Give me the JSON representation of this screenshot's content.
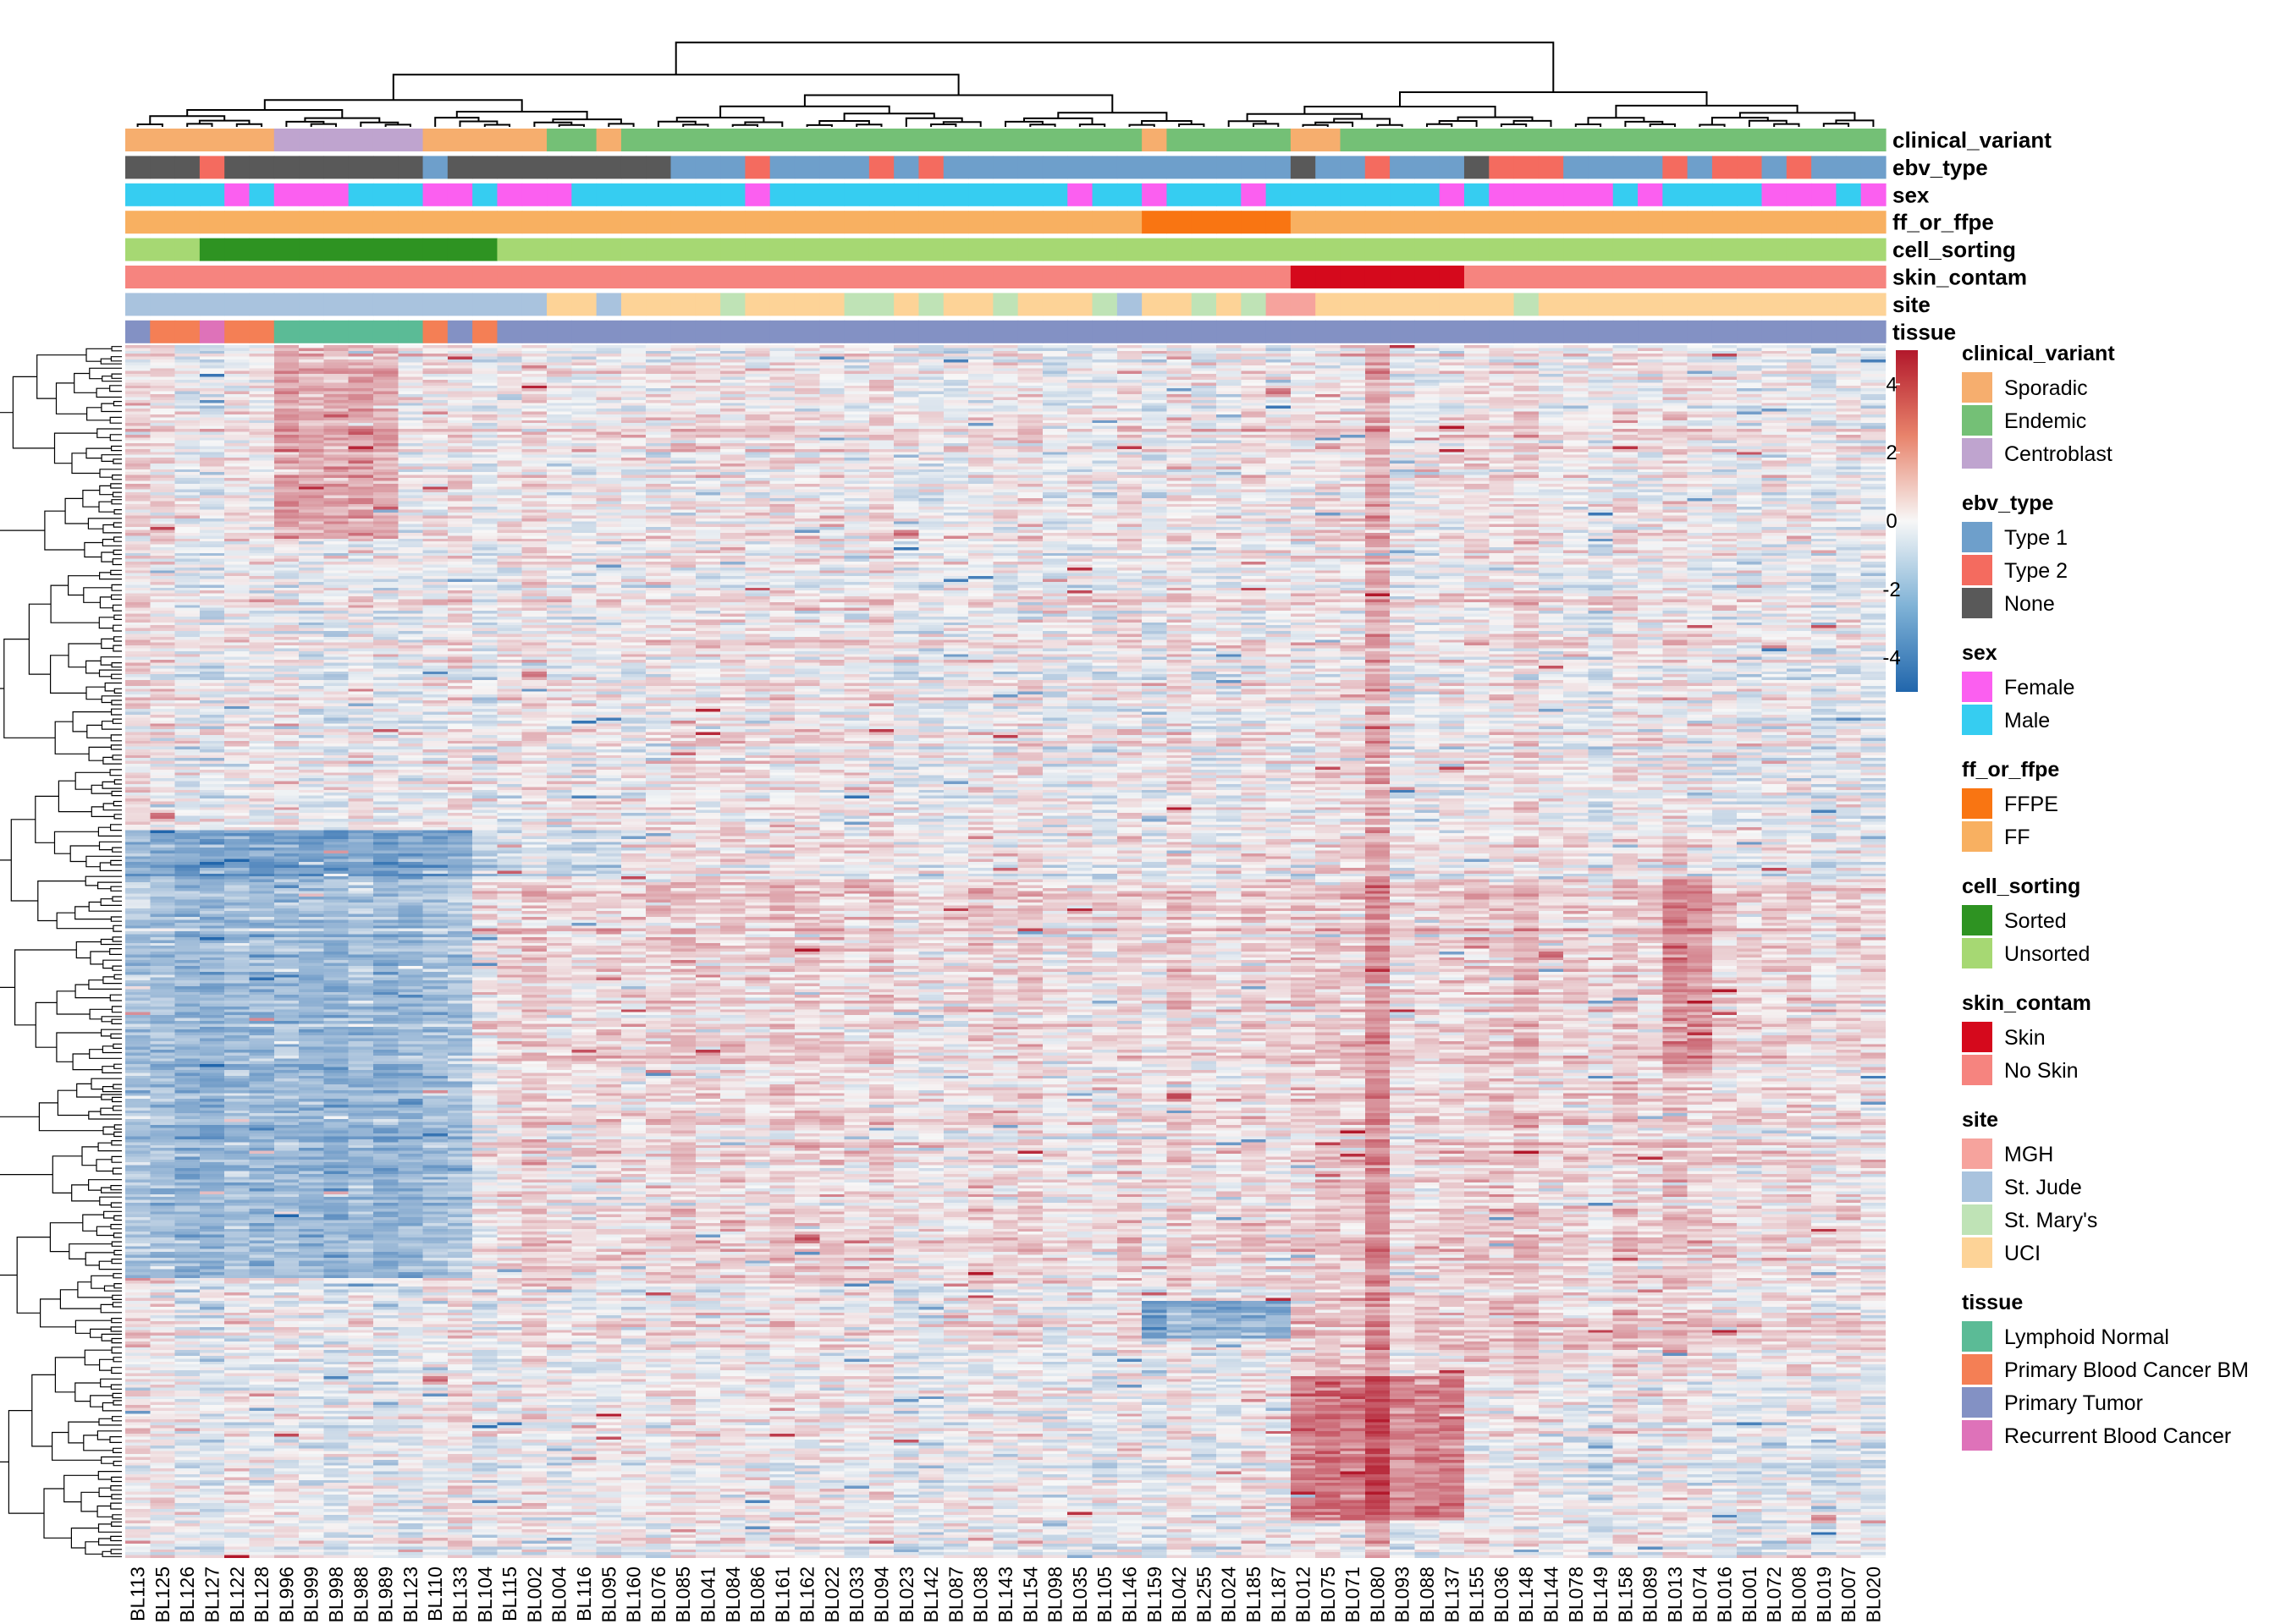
{
  "chart_data": {
    "type": "heatmap",
    "title": "",
    "xlabel": "",
    "ylabel": "",
    "columns": [
      "BL113",
      "BL125",
      "BL126",
      "BL127",
      "BL122",
      "BL128",
      "BL996",
      "BL999",
      "BL998",
      "BL988",
      "BL989",
      "BL123",
      "BL110",
      "BL133",
      "BL104",
      "BL115",
      "BL002",
      "BL004",
      "BL116",
      "BL095",
      "BL160",
      "BL076",
      "BL085",
      "BL041",
      "BL084",
      "BL086",
      "BL161",
      "BL162",
      "BL022",
      "BL033",
      "BL094",
      "BL023",
      "BL142",
      "BL087",
      "BL038",
      "BL143",
      "BL154",
      "BL098",
      "BL035",
      "BL105",
      "BL146",
      "BL159",
      "BL042",
      "BL255",
      "BL024",
      "BL185",
      "BL187",
      "BL012",
      "BL075",
      "BL071",
      "BL080",
      "BL093",
      "BL088",
      "BL137",
      "BL155",
      "BL036",
      "BL148",
      "BL144",
      "BL078",
      "BL149",
      "BL158",
      "BL089",
      "BL013",
      "BL074",
      "BL016",
      "BL001",
      "BL072",
      "BL008",
      "BL019",
      "BL007",
      "BL020"
    ],
    "column_order_note": "",
    "annotations": [
      {
        "name": "clinical_variant",
        "values": [
          "Sporadic",
          "Sporadic",
          "Sporadic",
          "Sporadic",
          "Sporadic",
          "Sporadic",
          "Centroblast",
          "Centroblast",
          "Centroblast",
          "Centroblast",
          "Centroblast",
          "Centroblast",
          "Sporadic",
          "Sporadic",
          "Sporadic",
          "Sporadic",
          "Sporadic",
          "Endemic",
          "Endemic",
          "Sporadic",
          "Endemic",
          "Endemic",
          "Endemic",
          "Endemic",
          "Endemic",
          "Endemic",
          "Endemic",
          "Endemic",
          "Endemic",
          "Endemic",
          "Endemic",
          "Endemic",
          "Endemic",
          "Endemic",
          "Endemic",
          "Endemic",
          "Endemic",
          "Endemic",
          "Endemic",
          "Endemic",
          "Endemic",
          "Sporadic",
          "Endemic",
          "Endemic",
          "Endemic",
          "Endemic",
          "Endemic",
          "Sporadic",
          "Sporadic",
          "Endemic",
          "Endemic",
          "Endemic",
          "Endemic",
          "Endemic",
          "Endemic",
          "Endemic",
          "Endemic",
          "Endemic",
          "Endemic",
          "Endemic",
          "Endemic",
          "Endemic",
          "Endemic",
          "Endemic",
          "Endemic",
          "Endemic",
          "Endemic",
          "Endemic",
          "Endemic",
          "Endemic",
          "Endemic"
        ]
      },
      {
        "name": "ebv_type",
        "values": [
          "None",
          "None",
          "None",
          "Type 2",
          "None",
          "None",
          "None",
          "None",
          "None",
          "None",
          "None",
          "None",
          "Type 1",
          "None",
          "None",
          "None",
          "None",
          "None",
          "None",
          "None",
          "None",
          "None",
          "Type 1",
          "Type 1",
          "Type 1",
          "Type 2",
          "Type 1",
          "Type 1",
          "Type 1",
          "Type 1",
          "Type 2",
          "Type 1",
          "Type 2",
          "Type 1",
          "Type 1",
          "Type 1",
          "Type 1",
          "Type 1",
          "Type 1",
          "Type 1",
          "Type 1",
          "Type 1",
          "Type 1",
          "Type 1",
          "Type 1",
          "Type 1",
          "Type 1",
          "None",
          "Type 1",
          "Type 1",
          "Type 2",
          "Type 1",
          "Type 1",
          "Type 1",
          "None",
          "Type 2",
          "Type 2",
          "Type 2",
          "Type 1",
          "Type 1",
          "Type 1",
          "Type 1",
          "Type 2",
          "Type 1",
          "Type 2",
          "Type 2",
          "Type 1",
          "Type 2",
          "Type 1",
          "Type 1",
          "Type 1"
        ]
      },
      {
        "name": "sex",
        "values": [
          "Male",
          "Male",
          "Male",
          "Male",
          "Female",
          "Male",
          "Female",
          "Female",
          "Female",
          "Male",
          "Male",
          "Male",
          "Female",
          "Female",
          "Male",
          "Female",
          "Female",
          "Female",
          "Male",
          "Male",
          "Male",
          "Male",
          "Male",
          "Male",
          "Male",
          "Female",
          "Male",
          "Male",
          "Male",
          "Male",
          "Male",
          "Male",
          "Male",
          "Male",
          "Male",
          "Male",
          "Male",
          "Male",
          "Female",
          "Male",
          "Male",
          "Female",
          "Male",
          "Male",
          "Male",
          "Female",
          "Male",
          "Male",
          "Male",
          "Male",
          "Male",
          "Male",
          "Male",
          "Female",
          "Male",
          "Female",
          "Female",
          "Female",
          "Female",
          "Female",
          "Male",
          "Female",
          "Male",
          "Male",
          "Male",
          "Male",
          "Female",
          "Female",
          "Female",
          "Male",
          "Female"
        ]
      },
      {
        "name": "ff_or_ffpe",
        "values": [
          "FF",
          "FF",
          "FF",
          "FF",
          "FF",
          "FF",
          "FF",
          "FF",
          "FF",
          "FF",
          "FF",
          "FF",
          "FF",
          "FF",
          "FF",
          "FF",
          "FF",
          "FF",
          "FF",
          "FF",
          "FF",
          "FF",
          "FF",
          "FF",
          "FF",
          "FF",
          "FF",
          "FF",
          "FF",
          "FF",
          "FF",
          "FF",
          "FF",
          "FF",
          "FF",
          "FF",
          "FF",
          "FF",
          "FF",
          "FF",
          "FF",
          "FFPE",
          "FFPE",
          "FFPE",
          "FFPE",
          "FFPE",
          "FFPE",
          "FF",
          "FF",
          "FF",
          "FF",
          "FF",
          "FF",
          "FF",
          "FF",
          "FF",
          "FF",
          "FF",
          "FF",
          "FF",
          "FF",
          "FF",
          "FF",
          "FF",
          "FF",
          "FF",
          "FF",
          "FF",
          "FF",
          "FF",
          "FF"
        ]
      },
      {
        "name": "cell_sorting",
        "values": [
          "Unsorted",
          "Unsorted",
          "Unsorted",
          "Sorted",
          "Sorted",
          "Sorted",
          "Sorted",
          "Sorted",
          "Sorted",
          "Sorted",
          "Sorted",
          "Sorted",
          "Sorted",
          "Sorted",
          "Sorted",
          "Unsorted",
          "Unsorted",
          "Unsorted",
          "Unsorted",
          "Unsorted",
          "Unsorted",
          "Unsorted",
          "Unsorted",
          "Unsorted",
          "Unsorted",
          "Unsorted",
          "Unsorted",
          "Unsorted",
          "Unsorted",
          "Unsorted",
          "Unsorted",
          "Unsorted",
          "Unsorted",
          "Unsorted",
          "Unsorted",
          "Unsorted",
          "Unsorted",
          "Unsorted",
          "Unsorted",
          "Unsorted",
          "Unsorted",
          "Unsorted",
          "Unsorted",
          "Unsorted",
          "Unsorted",
          "Unsorted",
          "Unsorted",
          "Unsorted",
          "Unsorted",
          "Unsorted",
          "Unsorted",
          "Unsorted",
          "Unsorted",
          "Unsorted",
          "Unsorted",
          "Unsorted",
          "Unsorted",
          "Unsorted",
          "Unsorted",
          "Unsorted",
          "Unsorted",
          "Unsorted",
          "Unsorted",
          "Unsorted",
          "Unsorted",
          "Unsorted",
          "Unsorted",
          "Unsorted",
          "Unsorted",
          "Unsorted",
          "Unsorted"
        ]
      },
      {
        "name": "skin_contam",
        "values": [
          "No Skin",
          "No Skin",
          "No Skin",
          "No Skin",
          "No Skin",
          "No Skin",
          "No Skin",
          "No Skin",
          "No Skin",
          "No Skin",
          "No Skin",
          "No Skin",
          "No Skin",
          "No Skin",
          "No Skin",
          "No Skin",
          "No Skin",
          "No Skin",
          "No Skin",
          "No Skin",
          "No Skin",
          "No Skin",
          "No Skin",
          "No Skin",
          "No Skin",
          "No Skin",
          "No Skin",
          "No Skin",
          "No Skin",
          "No Skin",
          "No Skin",
          "No Skin",
          "No Skin",
          "No Skin",
          "No Skin",
          "No Skin",
          "No Skin",
          "No Skin",
          "No Skin",
          "No Skin",
          "No Skin",
          "No Skin",
          "No Skin",
          "No Skin",
          "No Skin",
          "No Skin",
          "No Skin",
          "Skin",
          "Skin",
          "Skin",
          "Skin",
          "Skin",
          "Skin",
          "Skin",
          "No Skin",
          "No Skin",
          "No Skin",
          "No Skin",
          "No Skin",
          "No Skin",
          "No Skin",
          "No Skin",
          "No Skin",
          "No Skin",
          "No Skin",
          "No Skin",
          "No Skin",
          "No Skin",
          "No Skin",
          "No Skin",
          "No Skin"
        ]
      },
      {
        "name": "site",
        "values": [
          "St. Jude",
          "St. Jude",
          "St. Jude",
          "St. Jude",
          "St. Jude",
          "St. Jude",
          "St. Jude",
          "St. Jude",
          "St. Jude",
          "St. Jude",
          "St. Jude",
          "St. Jude",
          "St. Jude",
          "St. Jude",
          "St. Jude",
          "St. Jude",
          "St. Jude",
          "UCI",
          "UCI",
          "St. Jude",
          "UCI",
          "UCI",
          "UCI",
          "UCI",
          "St. Mary's",
          "UCI",
          "UCI",
          "UCI",
          "UCI",
          "St. Mary's",
          "St. Mary's",
          "UCI",
          "St. Mary's",
          "UCI",
          "UCI",
          "St. Mary's",
          "UCI",
          "UCI",
          "UCI",
          "St. Mary's",
          "St. Jude",
          "UCI",
          "UCI",
          "St. Mary's",
          "UCI",
          "St. Mary's",
          "MGH",
          "MGH",
          "UCI",
          "UCI",
          "UCI",
          "UCI",
          "UCI",
          "UCI",
          "UCI",
          "UCI",
          "St. Mary's",
          "UCI",
          "UCI",
          "UCI",
          "UCI",
          "UCI",
          "UCI",
          "UCI",
          "UCI",
          "UCI",
          "UCI",
          "UCI",
          "UCI",
          "UCI",
          "UCI"
        ]
      },
      {
        "name": "tissue",
        "values": [
          "Primary Tumor",
          "Primary Blood Cancer BM",
          "Primary Blood Cancer BM",
          "Recurrent Blood Cancer",
          "Primary Blood Cancer BM",
          "Primary Blood Cancer BM",
          "Lymphoid Normal",
          "Lymphoid Normal",
          "Lymphoid Normal",
          "Lymphoid Normal",
          "Lymphoid Normal",
          "Lymphoid Normal",
          "Primary Blood Cancer BM",
          "Primary Tumor",
          "Primary Blood Cancer BM",
          "Primary Tumor",
          "Primary Tumor",
          "Primary Tumor",
          "Primary Tumor",
          "Primary Tumor",
          "Primary Tumor",
          "Primary Tumor",
          "Primary Tumor",
          "Primary Tumor",
          "Primary Tumor",
          "Primary Tumor",
          "Primary Tumor",
          "Primary Tumor",
          "Primary Tumor",
          "Primary Tumor",
          "Primary Tumor",
          "Primary Tumor",
          "Primary Tumor",
          "Primary Tumor",
          "Primary Tumor",
          "Primary Tumor",
          "Primary Tumor",
          "Primary Tumor",
          "Primary Tumor",
          "Primary Tumor",
          "Primary Tumor",
          "Primary Tumor",
          "Primary Tumor",
          "Primary Tumor",
          "Primary Tumor",
          "Primary Tumor",
          "Primary Tumor",
          "Primary Tumor",
          "Primary Tumor",
          "Primary Tumor",
          "Primary Tumor",
          "Primary Tumor",
          "Primary Tumor",
          "Primary Tumor",
          "Primary Tumor",
          "Primary Tumor",
          "Primary Tumor",
          "Primary Tumor",
          "Primary Tumor",
          "Primary Tumor",
          "Primary Tumor",
          "Primary Tumor",
          "Primary Tumor",
          "Primary Tumor",
          "Primary Tumor",
          "Primary Tumor",
          "Primary Tumor",
          "Primary Tumor",
          "Primary Tumor",
          "Primary Tumor",
          "Primary Tumor"
        ]
      }
    ],
    "color_scale": {
      "min": -5,
      "max": 5,
      "ticks": [
        "4",
        "2",
        "0",
        "-2",
        "-4"
      ],
      "tick_values": [
        4,
        2,
        0,
        -2,
        -4
      ],
      "low_color": "#2166ac",
      "mid_color": "#f7f7f7",
      "high_color": "#b2182b"
    },
    "heatmap_blocks": [
      {
        "cols": [
          "BL996",
          "BL989"
        ],
        "rows_fraction": [
          0.0,
          0.16
        ],
        "value": 1.5
      },
      {
        "cols": [
          "BL113",
          "BL133"
        ],
        "rows_fraction": [
          0.4,
          0.77
        ],
        "value": -1.8
      },
      {
        "cols": [
          "BL012",
          "BL137"
        ],
        "rows_fraction": [
          0.85,
          0.97
        ],
        "value": 2.5
      },
      {
        "cols": [
          "BL159",
          "BL187"
        ],
        "rows_fraction": [
          0.79,
          0.82
        ],
        "value": -2.2
      },
      {
        "cols": [
          "BL113",
          "BL095"
        ],
        "rows_fraction": [
          0.4,
          0.44
        ],
        "value": -1.0
      },
      {
        "cols": [
          "BL080",
          "BL080"
        ],
        "rows_fraction": [
          0.0,
          1.0
        ],
        "value": 1.4
      },
      {
        "cols": [
          "BL013",
          "BL074"
        ],
        "rows_fraction": [
          0.44,
          0.6
        ],
        "value": 1.3
      },
      {
        "cols": [
          "BL012",
          "BL020"
        ],
        "rows_fraction": [
          0.44,
          0.85
        ],
        "value": 0.6
      },
      {
        "cols": [
          "BL104",
          "BL187"
        ],
        "rows_fraction": [
          0.44,
          0.78
        ],
        "value": 0.45
      }
    ],
    "grid": false
  },
  "legend": [
    {
      "title": "clinical_variant",
      "items": [
        {
          "label": "Sporadic",
          "color": "#f6ae6e"
        },
        {
          "label": "Endemic",
          "color": "#74c076"
        },
        {
          "label": "Centroblast",
          "color": "#bfa4cf"
        }
      ]
    },
    {
      "title": "ebv_type",
      "items": [
        {
          "label": "Type 1",
          "color": "#6e9fcb"
        },
        {
          "label": "Type 2",
          "color": "#f46b5f"
        },
        {
          "label": "None",
          "color": "#595959"
        }
      ]
    },
    {
      "title": "sex",
      "items": [
        {
          "label": "Female",
          "color": "#fb5ff0"
        },
        {
          "label": "Male",
          "color": "#36cdf1"
        }
      ]
    },
    {
      "title": "ff_or_ffpe",
      "items": [
        {
          "label": "FFPE",
          "color": "#f97512"
        },
        {
          "label": "FF",
          "color": "#f8b061"
        }
      ]
    },
    {
      "title": "cell_sorting",
      "items": [
        {
          "label": "Sorted",
          "color": "#2e9322"
        },
        {
          "label": "Unsorted",
          "color": "#a6d873"
        }
      ]
    },
    {
      "title": "skin_contam",
      "items": [
        {
          "label": "Skin",
          "color": "#d5091c"
        },
        {
          "label": "No Skin",
          "color": "#f6847f"
        }
      ]
    },
    {
      "title": "site",
      "items": [
        {
          "label": "MGH",
          "color": "#f6a39d"
        },
        {
          "label": "St. Jude",
          "color": "#a9c3de"
        },
        {
          "label": "St. Mary's",
          "color": "#bfe3b6"
        },
        {
          "label": "UCI",
          "color": "#fdd397"
        }
      ]
    },
    {
      "title": "tissue",
      "items": [
        {
          "label": "Lymphoid Normal",
          "color": "#5bbb96"
        },
        {
          "label": "Primary Blood Cancer BM",
          "color": "#f47f55"
        },
        {
          "label": "Primary Tumor",
          "color": "#8391c4"
        },
        {
          "label": "Recurrent Blood Cancer",
          "color": "#de72b9"
        }
      ]
    }
  ]
}
